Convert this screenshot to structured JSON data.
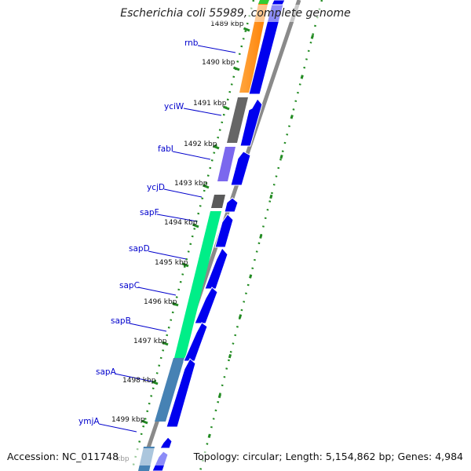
{
  "title": "Escherichia coli 55989, complete genome",
  "footer": {
    "accession": "Accession: NC_011748",
    "summary": "Topology: circular; Length: 5,154,862 bp; Genes: 4,984"
  },
  "tick_labels": [
    "1489 kbp",
    "1490 kbp",
    "1491 kbp",
    "1492 kbp",
    "1493 kbp",
    "1494 kbp",
    "1495 kbp",
    "1496 kbp",
    "1497 kbp",
    "1498 kbp",
    "1499 kbp",
    "kbp"
  ],
  "gene_labels": [
    "rnb",
    "yciW",
    "fabI",
    "ycjD",
    "sapF",
    "sapD",
    "sapC",
    "sapB",
    "sapA",
    "ymjA"
  ],
  "colors": {
    "strand_arrow": "#0000ee",
    "backbone": "#8a8a8a",
    "ticks": "#228b22",
    "label_text": "#0000cc",
    "cog_orange": "#ff8c00",
    "cog_gray": "#666666",
    "cog_purple": "#7b68ee",
    "cog_green": "#00ee88",
    "cog_steelblue": "#4682b4",
    "cog_top_green": "#33cc33"
  }
}
